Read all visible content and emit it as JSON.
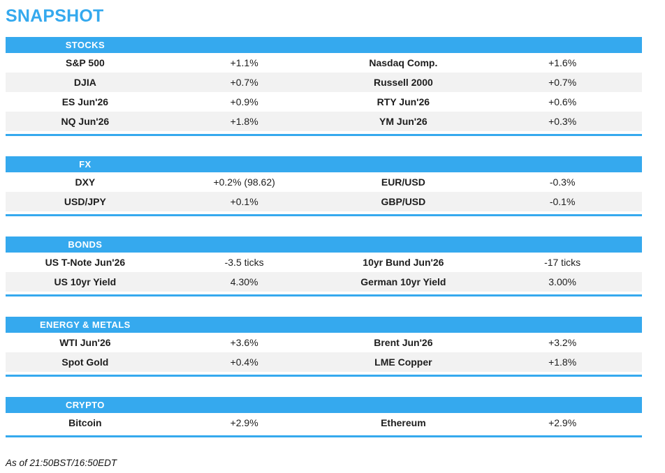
{
  "page_title": "SNAPSHOT",
  "footer_note": "As of 21:50BST/16:50EDT",
  "colors": {
    "accent_blue": "#35a9ee",
    "row_alt_bg": "#f2f2f2",
    "header_text": "#ffffff",
    "body_text": "#1d1d1d"
  },
  "sections": [
    {
      "label": "STOCKS",
      "rows": [
        [
          "S&P 500",
          "+1.1%",
          "Nasdaq Comp.",
          "+1.6%"
        ],
        [
          "DJIA",
          "+0.7%",
          "Russell 2000",
          "+0.7%"
        ],
        [
          "ES Jun'26",
          "+0.9%",
          "RTY Jun'26",
          "+0.6%"
        ],
        [
          "NQ Jun'26",
          "+1.8%",
          "YM Jun'26",
          "+0.3%"
        ]
      ]
    },
    {
      "label": "FX",
      "rows": [
        [
          "DXY",
          "+0.2% (98.62)",
          "EUR/USD",
          "-0.3%"
        ],
        [
          "USD/JPY",
          "+0.1%",
          "GBP/USD",
          "-0.1%"
        ]
      ]
    },
    {
      "label": "BONDS",
      "rows": [
        [
          "US T-Note Jun'26",
          "-3.5 ticks",
          "10yr Bund Jun'26",
          "-17 ticks"
        ],
        [
          "US 10yr Yield",
          "4.30%",
          "German 10yr Yield",
          "3.00%"
        ]
      ]
    },
    {
      "label": "ENERGY & METALS",
      "rows": [
        [
          "WTI Jun'26",
          "+3.6%",
          "Brent Jun'26",
          "+3.2%"
        ],
        [
          "Spot Gold",
          "+0.4%",
          "LME Copper",
          "+1.8%"
        ]
      ]
    },
    {
      "label": "CRYPTO",
      "rows": [
        [
          "Bitcoin",
          "+2.9%",
          "Ethereum",
          "+2.9%"
        ]
      ]
    }
  ]
}
